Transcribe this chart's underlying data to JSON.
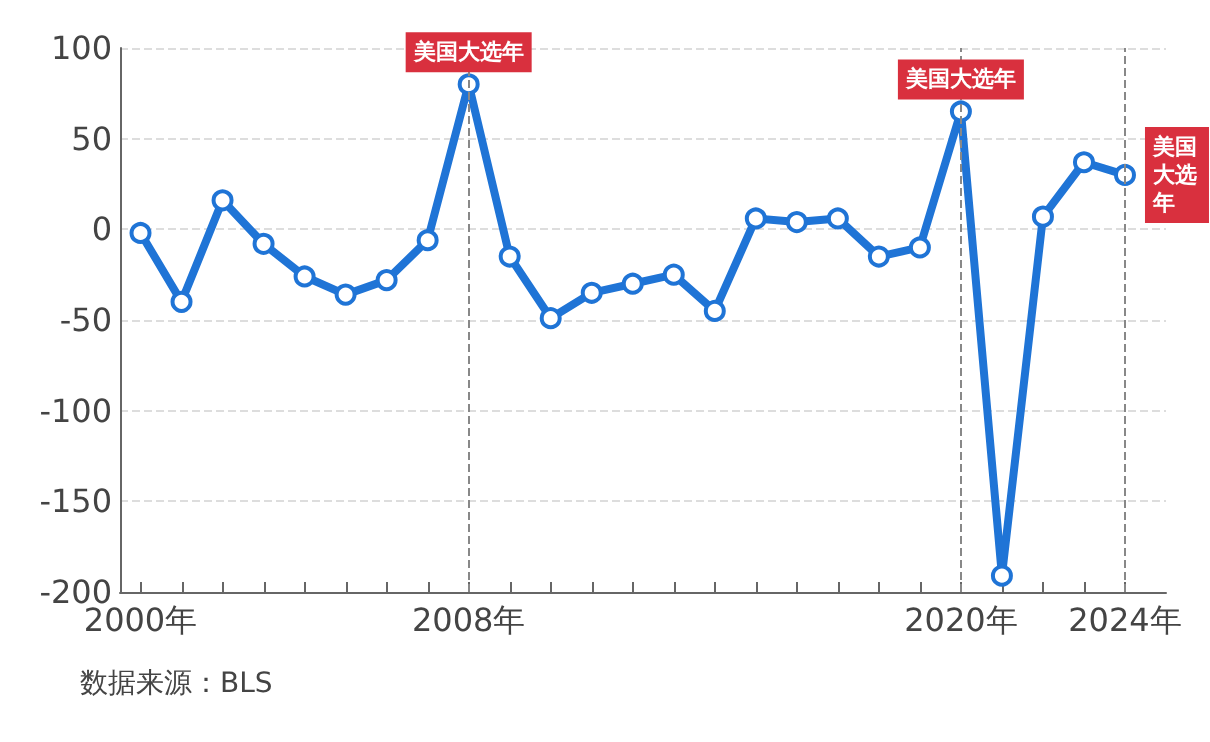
{
  "chart_data": {
    "type": "line",
    "x": [
      2000,
      2001,
      2002,
      2003,
      2004,
      2005,
      2006,
      2007,
      2008,
      2009,
      2010,
      2011,
      2012,
      2013,
      2014,
      2015,
      2016,
      2017,
      2018,
      2019,
      2020,
      2021,
      2022,
      2023,
      2024
    ],
    "series": [
      {
        "color": "#1f74d6",
        "values": [
          -2,
          -40,
          16,
          -8,
          -26,
          -36,
          -28,
          -6,
          80,
          -15,
          -49,
          -35,
          -30,
          -25,
          -45,
          6,
          4,
          6,
          -15,
          -10,
          65,
          -191,
          7,
          37,
          30
        ]
      }
    ],
    "xlim": [
      1999.5,
      2025
    ],
    "xticks": [
      {
        "value": 2000,
        "label": "2000年"
      },
      {
        "value": 2001,
        "label": null
      },
      {
        "value": 2002,
        "label": null
      },
      {
        "value": 2003,
        "label": null
      },
      {
        "value": 2004,
        "label": null
      },
      {
        "value": 2005,
        "label": null
      },
      {
        "value": 2006,
        "label": null
      },
      {
        "value": 2007,
        "label": null
      },
      {
        "value": 2008,
        "label": "2008年"
      },
      {
        "value": 2009,
        "label": null
      },
      {
        "value": 2010,
        "label": null
      },
      {
        "value": 2011,
        "label": null
      },
      {
        "value": 2012,
        "label": null
      },
      {
        "value": 2013,
        "label": null
      },
      {
        "value": 2014,
        "label": null
      },
      {
        "value": 2015,
        "label": null
      },
      {
        "value": 2016,
        "label": null
      },
      {
        "value": 2017,
        "label": null
      },
      {
        "value": 2018,
        "label": null
      },
      {
        "value": 2019,
        "label": null
      },
      {
        "value": 2020,
        "label": "2020年"
      },
      {
        "value": 2021,
        "label": null
      },
      {
        "value": 2022,
        "label": null
      },
      {
        "value": 2023,
        "label": null
      },
      {
        "value": 2024,
        "label": "2024年"
      }
    ],
    "ylim": [
      -200,
      100
    ],
    "yticks": [
      -200,
      -150,
      -100,
      -50,
      0,
      50,
      100
    ],
    "grid": "y",
    "marker": "circle",
    "line_style": "solid",
    "ref_lines": [
      {
        "axis": "x",
        "value": 2008,
        "line_style": "dashed",
        "color": "#888888"
      },
      {
        "axis": "x",
        "value": 2020,
        "line_style": "dashed",
        "color": "#888888"
      },
      {
        "axis": "x",
        "value": 2024,
        "line_style": "dashed",
        "color": "#888888"
      }
    ],
    "annotations": [
      {
        "text": "美国大选年",
        "x": 2008,
        "y": 80
      },
      {
        "text": "美国大选年",
        "x": 2020,
        "y": 65
      },
      {
        "text": "美国大选年",
        "x": 2024,
        "y": 30
      },
      "数据来源：BLS"
    ]
  }
}
